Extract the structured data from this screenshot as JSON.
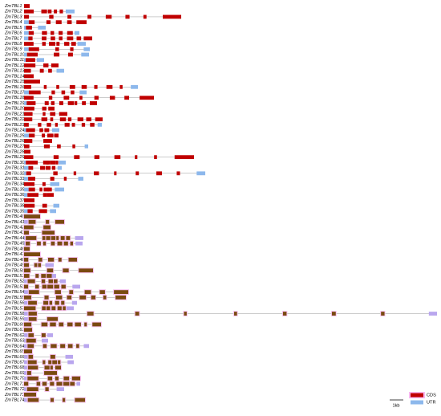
{
  "genes": [
    "ZmTBL1",
    "ZmTBL2",
    "ZmTBL3",
    "ZmTBL4",
    "ZmTBL5",
    "ZmTBL6",
    "ZmTBL7",
    "ZmTBL8",
    "ZmTBL9",
    "ZmTBL10",
    "ZmTBL11",
    "ZmTBL12",
    "ZmTBL13",
    "ZmTBL14",
    "ZmTBL15",
    "ZmTBL16",
    "ZmTBL17",
    "ZmTBL18",
    "ZmTBL19",
    "ZmTBL20",
    "ZmTBL21",
    "ZmTBL22",
    "ZmTBL23",
    "ZmTBL24",
    "ZmTBL25",
    "ZmTBL26",
    "ZmTBL27",
    "ZmTBL28",
    "ZmTBL29",
    "ZmTBL30",
    "ZmTBL31",
    "ZmTBL32",
    "ZmTBL33",
    "ZmTBL34",
    "ZmTBL35",
    "ZmTBL36",
    "ZmTBL37",
    "ZmTBL38",
    "ZmTBL39",
    "ZmTBL40",
    "ZmTBL41",
    "ZmTBL42",
    "ZmTBL43",
    "ZmTBL44",
    "ZmTBL45",
    "ZmTBL46",
    "ZmTBL47",
    "ZmTBL48",
    "ZmTBL49",
    "ZmTBL50",
    "ZmTBL51",
    "ZmTBL52",
    "ZmTBL53",
    "ZmTBL54",
    "ZmTBL55",
    "ZmTBL56",
    "ZmTBL57",
    "ZmTBL58",
    "ZmTBL59",
    "ZmTBL60",
    "ZmTBL61",
    "ZmTBL62",
    "ZmTBL63",
    "ZmTBL64",
    "ZmTBL65",
    "ZmTBL66",
    "ZmTBL67",
    "ZmTBL68",
    "ZmTBL69",
    "ZmTBL70",
    "ZmTBL71",
    "ZmTBL72",
    "ZmTBL73",
    "ZmTBL74"
  ],
  "legend": {
    "cds": "CDS",
    "utr": "UTR"
  },
  "scale_bar": "1kb"
}
